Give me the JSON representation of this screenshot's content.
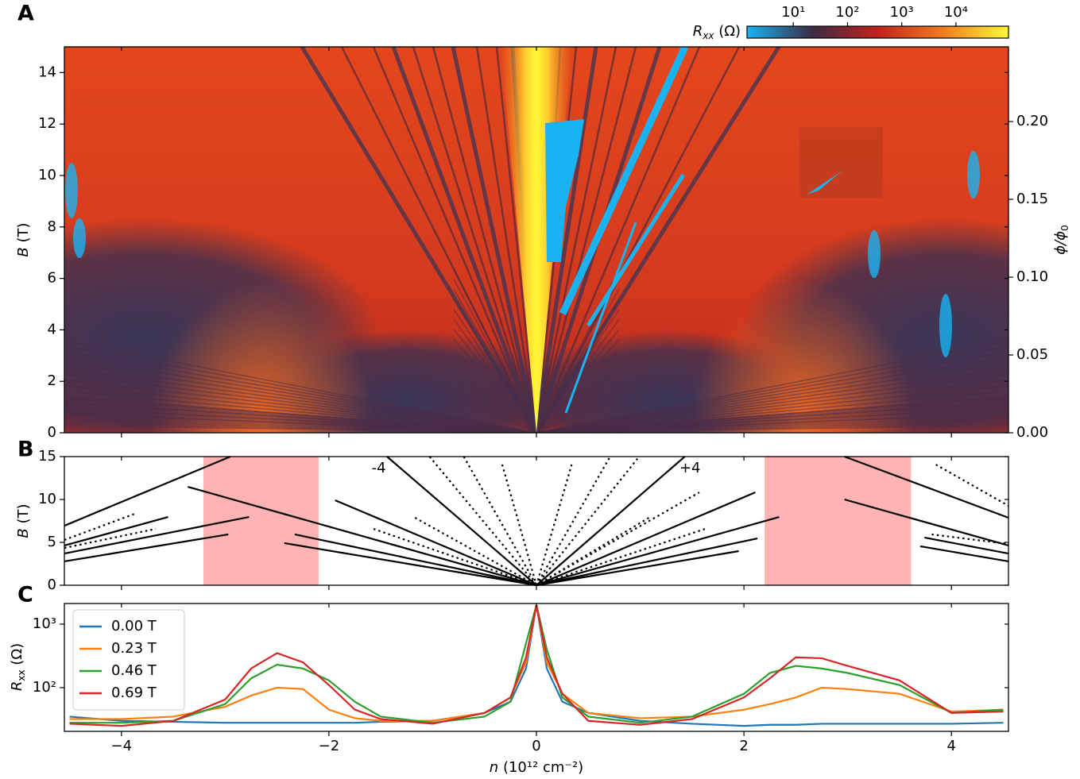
{
  "chart_data": [
    {
      "type": "heatmap",
      "panel_label": "A",
      "xlim": [
        -4.55,
        4.55
      ],
      "ylim": [
        0,
        15
      ],
      "yticks": [
        0,
        2,
        4,
        6,
        8,
        10,
        12,
        14
      ],
      "ylabel": {
        "symbol": "B",
        "unit": "(T)"
      },
      "y2lim": [
        0,
        0.248
      ],
      "y2ticks": [
        {
          "value": 0,
          "label": "0.00"
        },
        0.05,
        {
          "value": 0.1,
          "label": "0.10"
        },
        0.15,
        {
          "value": 0.2,
          "label": "0.20"
        }
      ],
      "y2label": {
        "symbol": "ϕ/ϕ",
        "subscript": "0"
      },
      "colorbar": {
        "label": {
          "symbol": "R",
          "subscript": "xx",
          "unit": "(Ω)"
        },
        "scale": "log",
        "lim": [
          1.4,
          93000
        ],
        "ticks": [
          {
            "value": 10,
            "label": "10¹"
          },
          {
            "value": 100,
            "label": "10²"
          },
          {
            "value": 1000,
            "label": "10³"
          },
          {
            "value": 10000,
            "label": "10⁴"
          }
        ],
        "colors": [
          "#19b3f2",
          "#3c2b45",
          "#c2221c",
          "#f07c22",
          "#fff935"
        ]
      }
    },
    {
      "type": "fan",
      "panel_label": "B",
      "xlim": [
        -4.55,
        4.55
      ],
      "ylim": [
        0,
        15
      ],
      "yticks": [
        0,
        5,
        10,
        15
      ],
      "ylabel": {
        "symbol": "B",
        "unit": "(T)"
      },
      "shaded": [
        [
          -3.21,
          -2.1
        ],
        [
          2.2,
          3.61
        ]
      ],
      "shade_color": "#ffb3b3",
      "line_color": "#000000",
      "annotations": [
        "-4",
        "+4"
      ],
      "lines": [
        {
          "style": "solid",
          "x": [
            -4.55,
            -2.95
          ],
          "y": [
            6.94,
            15
          ]
        },
        {
          "style": "solid",
          "x": [
            -4.55,
            -3.55
          ],
          "y": [
            4.63,
            7.96
          ]
        },
        {
          "style": "solid",
          "x": [
            -4.55,
            -2.77
          ],
          "y": [
            3.7,
            7.96
          ]
        },
        {
          "style": "solid",
          "x": [
            -4.55,
            -2.97
          ],
          "y": [
            2.78,
            5.93
          ]
        },
        {
          "style": "solid",
          "x": [
            -3.36,
            0
          ],
          "y": [
            11.48,
            0
          ]
        },
        {
          "style": "solid",
          "x": [
            -1.94,
            0
          ],
          "y": [
            9.91,
            0
          ]
        },
        {
          "style": "solid",
          "x": [
            -2.33,
            0
          ],
          "y": [
            5.93,
            0
          ]
        },
        {
          "style": "solid",
          "x": [
            -2.43,
            0
          ],
          "y": [
            4.91,
            0
          ]
        },
        {
          "style": "solid",
          "x": [
            -1.44,
            0
          ],
          "y": [
            15,
            0
          ]
        },
        {
          "style": "solid",
          "x": [
            0,
            1.43
          ],
          "y": [
            0,
            15
          ]
        },
        {
          "style": "solid",
          "x": [
            0,
            2.11
          ],
          "y": [
            0,
            10.83
          ]
        },
        {
          "style": "solid",
          "x": [
            0,
            2.34
          ],
          "y": [
            0,
            7.96
          ]
        },
        {
          "style": "solid",
          "x": [
            0,
            2.13
          ],
          "y": [
            0,
            5.46
          ]
        },
        {
          "style": "solid",
          "x": [
            0,
            1.95
          ],
          "y": [
            0,
            3.98
          ]
        },
        {
          "style": "solid",
          "x": [
            2.97,
            4.55
          ],
          "y": [
            15,
            7.87
          ]
        },
        {
          "style": "solid",
          "x": [
            2.97,
            4.55
          ],
          "y": [
            10.0,
            4.63
          ]
        },
        {
          "style": "solid",
          "x": [
            3.74,
            4.55
          ],
          "y": [
            5.56,
            3.7
          ]
        },
        {
          "style": "solid",
          "x": [
            3.7,
            4.55
          ],
          "y": [
            4.54,
            2.78
          ]
        },
        {
          "style": "dotted",
          "x": [
            -1.03,
            0
          ],
          "y": [
            15,
            0
          ]
        },
        {
          "style": "dotted",
          "x": [
            -0.7,
            0
          ],
          "y": [
            15,
            0
          ]
        },
        {
          "style": "dotted",
          "x": [
            -0.33,
            0
          ],
          "y": [
            14.07,
            0
          ]
        },
        {
          "style": "dotted",
          "x": [
            -1.17,
            0
          ],
          "y": [
            7.87,
            0
          ]
        },
        {
          "style": "dotted",
          "x": [
            -1.57,
            0
          ],
          "y": [
            6.57,
            0
          ]
        },
        {
          "style": "dotted",
          "x": [
            0,
            0.34
          ],
          "y": [
            0,
            14.07
          ]
        },
        {
          "style": "dotted",
          "x": [
            0,
            0.71
          ],
          "y": [
            0,
            15
          ]
        },
        {
          "style": "dotted",
          "x": [
            0,
            0.99
          ],
          "y": [
            0,
            15
          ]
        },
        {
          "style": "dotted",
          "x": [
            0,
            1.57
          ],
          "y": [
            0,
            10.83
          ]
        },
        {
          "style": "dotted",
          "x": [
            0,
            1.11
          ],
          "y": [
            0,
            8.06
          ]
        },
        {
          "style": "dotted",
          "x": [
            0,
            1.65
          ],
          "y": [
            0,
            6.67
          ]
        },
        {
          "style": "dotted",
          "x": [
            -4.55,
            -3.85
          ],
          "y": [
            5.28,
            8.43
          ]
        },
        {
          "style": "dotted",
          "x": [
            -4.55,
            -3.67
          ],
          "y": [
            4.35,
            6.57
          ]
        },
        {
          "style": "dotted",
          "x": [
            3.85,
            4.55
          ],
          "y": [
            14.07,
            9.26
          ]
        },
        {
          "style": "dotted",
          "x": [
            3.81,
            4.55
          ],
          "y": [
            5.93,
            4.81
          ]
        }
      ]
    },
    {
      "type": "line",
      "panel_label": "C",
      "xlim": [
        -4.55,
        4.55
      ],
      "ylim": [
        20.5,
        2110
      ],
      "yscale": "log",
      "xticks": [
        {
          "value": -4,
          "label": "−4"
        },
        {
          "value": -2,
          "label": "−2"
        },
        0,
        2,
        4
      ],
      "yticks": [
        {
          "value": 100,
          "label": "10²"
        },
        {
          "value": 1000,
          "label": "10³"
        }
      ],
      "xlabel": {
        "symbol": "n",
        "unit": "(10¹² cm⁻²)"
      },
      "ylabel": {
        "symbol": "R",
        "subscript": "xx",
        "unit": "(Ω)"
      },
      "legend": "upper left",
      "x": [
        -4.5,
        -4,
        -3.5,
        -3,
        -2.75,
        -2.5,
        -2.25,
        -2,
        -1.75,
        -1.5,
        -1,
        -0.5,
        -0.25,
        -0.1,
        0,
        0.1,
        0.25,
        0.5,
        1,
        1.5,
        2,
        2.25,
        2.5,
        2.75,
        3,
        3.5,
        4,
        4.5
      ],
      "series": [
        {
          "name": "0.00 T",
          "color": "#1f77b4",
          "values": [
            35,
            30,
            29,
            28,
            28,
            28,
            28,
            28,
            28,
            29,
            30,
            40,
            60,
            200,
            2000,
            200,
            60,
            40,
            30,
            27,
            25,
            26,
            26,
            27,
            27,
            27,
            27,
            28
          ]
        },
        {
          "name": "0.23 T",
          "color": "#ff7f0e",
          "values": [
            32,
            32,
            35,
            50,
            75,
            100,
            95,
            45,
            33,
            30,
            30,
            40,
            70,
            250,
            2000,
            250,
            80,
            40,
            33,
            35,
            45,
            55,
            70,
            100,
            95,
            80,
            42,
            45
          ]
        },
        {
          "name": "0.46 T",
          "color": "#2ca02c",
          "values": [
            28,
            28,
            30,
            55,
            140,
            230,
            200,
            130,
            60,
            35,
            28,
            35,
            60,
            500,
            2000,
            400,
            70,
            35,
            28,
            35,
            80,
            170,
            220,
            200,
            170,
            110,
            40,
            45
          ]
        },
        {
          "name": "0.69 T",
          "color": "#d62728",
          "values": [
            27,
            25,
            30,
            65,
            200,
            350,
            250,
            110,
            45,
            32,
            27,
            40,
            70,
            300,
            2000,
            300,
            80,
            30,
            26,
            32,
            70,
            140,
            300,
            290,
            220,
            130,
            40,
            42
          ]
        }
      ]
    }
  ]
}
